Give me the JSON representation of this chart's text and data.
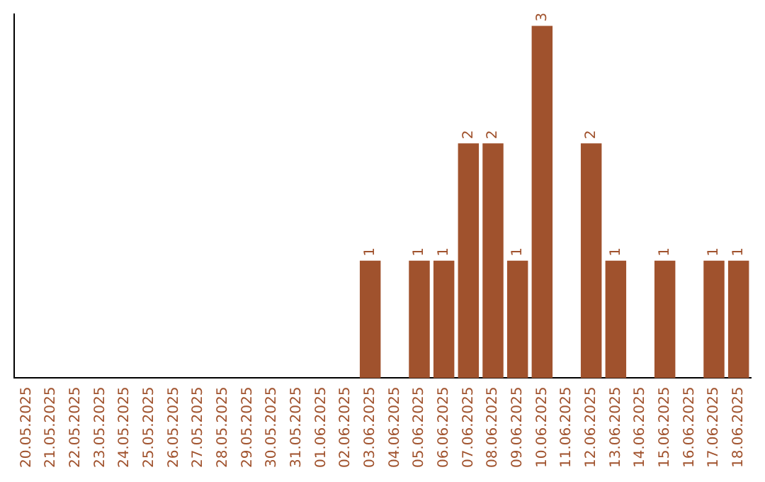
{
  "chart_data": {
    "type": "bar",
    "categories": [
      "20.05.2025",
      "21.05.2025",
      "22.05.2025",
      "23.05.2025",
      "24.05.2025",
      "25.05.2025",
      "26.05.2025",
      "27.05.2025",
      "28.05.2025",
      "29.05.2025",
      "30.05.2025",
      "31.05.2025",
      "01.06.2025",
      "02.06.2025",
      "03.06.2025",
      "04.06.2025",
      "05.06.2025",
      "06.06.2025",
      "07.06.2025",
      "08.06.2025",
      "09.06.2025",
      "10.06.2025",
      "11.06.2025",
      "12.06.2025",
      "13.06.2025",
      "14.06.2025",
      "15.06.2025",
      "16.06.2025",
      "17.06.2025",
      "18.06.2025"
    ],
    "values": [
      null,
      null,
      null,
      null,
      null,
      null,
      null,
      null,
      null,
      null,
      null,
      null,
      null,
      null,
      1,
      null,
      1,
      1,
      2,
      2,
      1,
      3,
      null,
      2,
      1,
      null,
      1,
      null,
      1,
      1
    ],
    "value_labels": [
      null,
      null,
      null,
      null,
      null,
      null,
      null,
      null,
      null,
      null,
      null,
      null,
      null,
      null,
      "1",
      null,
      "1",
      "1",
      "2",
      "2",
      "1",
      "3",
      null,
      "2",
      "1",
      null,
      "1",
      null,
      "1",
      "1"
    ],
    "color": "#a0522d",
    "ylim": [
      0,
      3.1
    ],
    "tick_labels": "x",
    "grid": false,
    "legend": false
  }
}
